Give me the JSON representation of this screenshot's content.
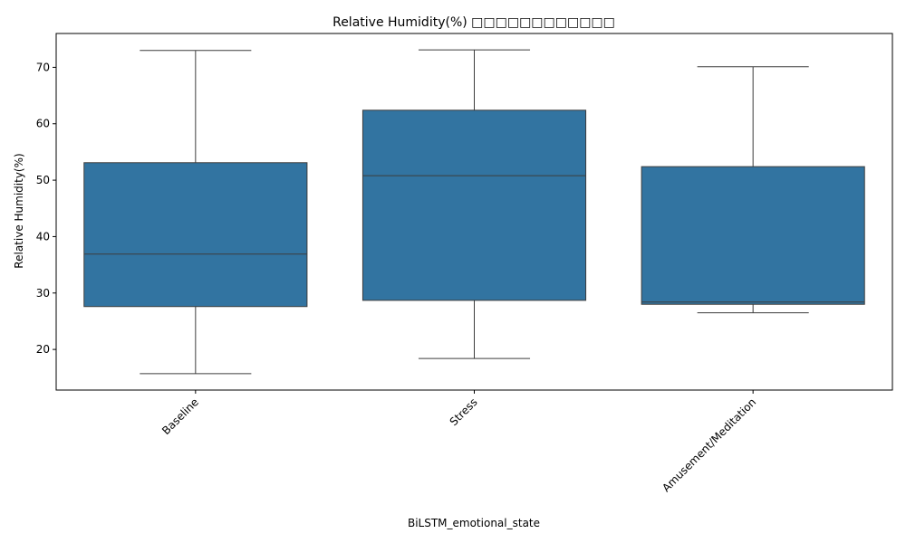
{
  "chart_data": {
    "type": "box",
    "title": "Relative Humidity(%) □□□□□□□□□□□□",
    "xlabel": "BiLSTM_emotional_state",
    "ylabel": "Relative Humidity(%)",
    "ylim": [
      12.8,
      76.0
    ],
    "yticks": [
      20,
      30,
      40,
      50,
      60,
      70
    ],
    "categories": [
      "Baseline",
      "Stress",
      "Amusement/Meditation"
    ],
    "boxes": [
      {
        "category": "Baseline",
        "whisker_low": 15.7,
        "q1": 27.6,
        "median": 36.9,
        "q3": 53.1,
        "whisker_high": 73.0
      },
      {
        "category": "Stress",
        "whisker_low": 18.4,
        "q1": 28.7,
        "median": 50.8,
        "q3": 62.4,
        "whisker_high": 73.1
      },
      {
        "category": "Amusement/Meditation",
        "whisker_low": 26.5,
        "q1": 28.0,
        "median": 28.4,
        "q3": 52.4,
        "whisker_high": 70.1
      }
    ],
    "colors": {
      "box_fill": "#3274a1",
      "line": "#3d3d3d",
      "axis": "#000000"
    },
    "grid": false,
    "legend": "none"
  }
}
